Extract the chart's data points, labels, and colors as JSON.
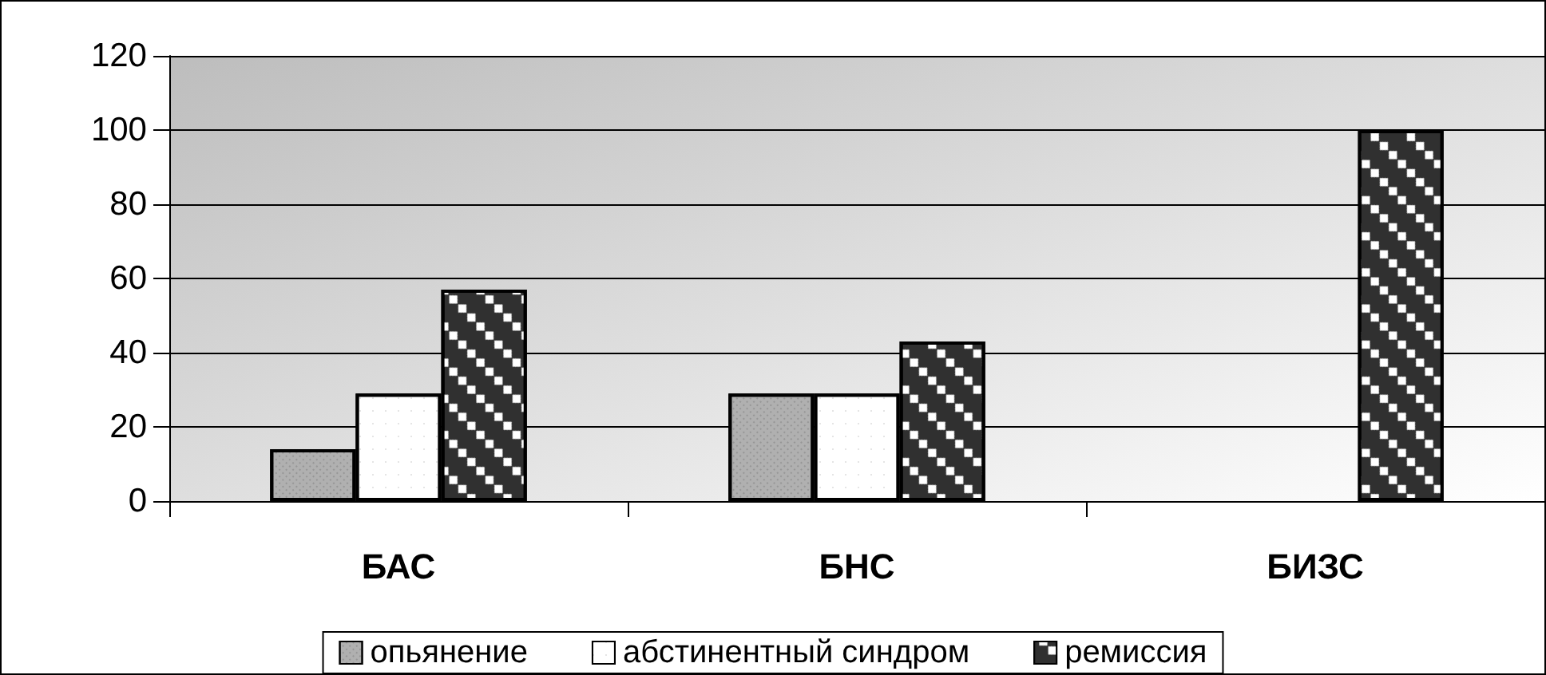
{
  "chart_data": {
    "type": "bar",
    "categories": [
      "БАС",
      "БНС",
      "БИЗС"
    ],
    "series": [
      {
        "name": "опьянение",
        "color": "#b0b0b0",
        "values": [
          14,
          29,
          0
        ]
      },
      {
        "name": "абстинентный синдром",
        "color": "#ffffff",
        "values": [
          29,
          29,
          0
        ]
      },
      {
        "name": "ремиссия",
        "color": "#303030",
        "values": [
          57,
          43,
          100
        ]
      }
    ],
    "ylim": [
      0,
      120
    ],
    "yticks": [
      0,
      20,
      40,
      60,
      80,
      100,
      120
    ],
    "grid": "y",
    "legend": "bottom"
  }
}
